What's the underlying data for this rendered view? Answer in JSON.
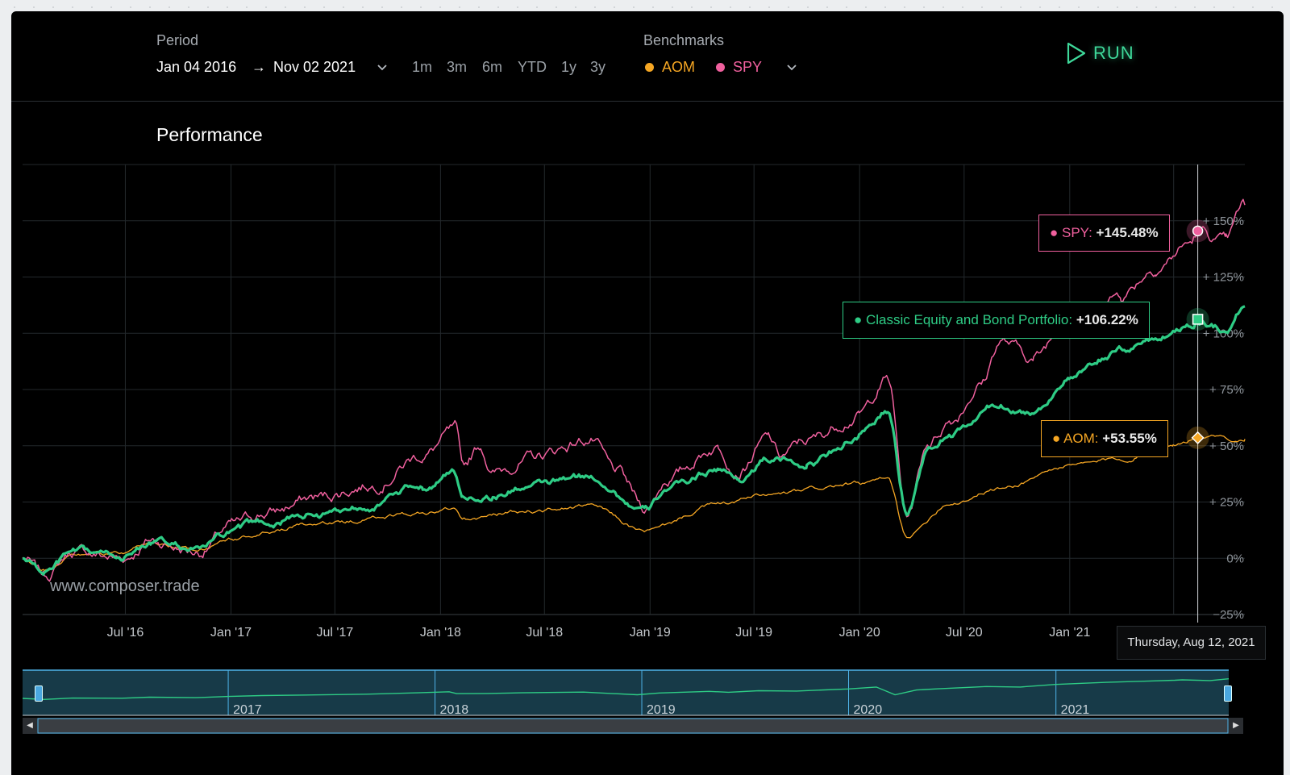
{
  "header": {
    "period_label": "Period",
    "start_date": "Jan 04 2016",
    "arrow": "→",
    "end_date": "Nov 02 2021",
    "quick_ranges": [
      "1m",
      "3m",
      "6m",
      "YTD",
      "1y",
      "3y"
    ],
    "benchmarks_label": "Benchmarks",
    "benchmarks": [
      {
        "name": "AOM",
        "color": "#f5a623"
      },
      {
        "name": "SPY",
        "color": "#f0609e"
      }
    ],
    "run_label": "RUN"
  },
  "chart_title": "Performance",
  "watermark": "www.composer.trade",
  "hover_date": "Thursday, Aug 12, 2021",
  "tooltips": [
    {
      "name": "SPY",
      "value": "+145.48%",
      "color": "#f0609e"
    },
    {
      "name": "Classic Equity and Bond Portfolio",
      "value": "+106.22%",
      "color": "#2ecc85"
    },
    {
      "name": "AOM",
      "value": "+53.55%",
      "color": "#f5a623"
    }
  ],
  "navigator_years": [
    "2017",
    "2018",
    "2019",
    "2020",
    "2021"
  ],
  "chart_data": {
    "type": "line",
    "x_tick_labels": [
      "Jul '16",
      "Jan '17",
      "Jul '17",
      "Jan '18",
      "Jul '18",
      "Jan '19",
      "Jul '19",
      "Jan '20",
      "Jul '20",
      "Jan '21"
    ],
    "y_tick_labels": [
      "+ 150%",
      "+ 125%",
      "+ 100%",
      "+ 75%",
      "+ 50%",
      "+ 25%",
      "0%",
      "−25%"
    ],
    "ylim": [
      -25,
      175
    ],
    "xlim": [
      "2016-01-04",
      "2021-11-02"
    ],
    "grid": true,
    "series": [
      {
        "name": "SPY",
        "color": "#f0609e",
        "x": [
          "2016-01-04",
          "2016-02-11",
          "2016-04-01",
          "2016-06-27",
          "2016-08-15",
          "2016-11-04",
          "2017-01-02",
          "2017-03-01",
          "2017-06-01",
          "2017-09-01",
          "2017-12-01",
          "2018-01-26",
          "2018-02-08",
          "2018-03-12",
          "2018-04-02",
          "2018-06-01",
          "2018-09-20",
          "2018-11-01",
          "2018-12-24",
          "2019-02-01",
          "2019-04-30",
          "2019-06-03",
          "2019-07-26",
          "2019-08-15",
          "2019-10-01",
          "2019-12-31",
          "2020-02-19",
          "2020-03-23",
          "2020-04-30",
          "2020-06-08",
          "2020-07-31",
          "2020-09-02",
          "2020-10-30",
          "2020-12-31",
          "2021-01-29",
          "2021-03-31",
          "2021-05-31",
          "2021-07-30",
          "2021-08-12",
          "2021-09-30",
          "2021-11-02"
        ],
        "values": [
          0,
          -8,
          3,
          0,
          8,
          3,
          14,
          20,
          27,
          33,
          46,
          56,
          40,
          50,
          38,
          44,
          53,
          38,
          22,
          36,
          50,
          40,
          53,
          45,
          52,
          64,
          80,
          19,
          52,
          62,
          78,
          97,
          89,
          108,
          108,
          118,
          130,
          140,
          145,
          140,
          157
        ]
      },
      {
        "name": "Classic Equity and Bond Portfolio",
        "color": "#2ecc85",
        "x": [
          "2016-01-04",
          "2016-02-11",
          "2016-04-01",
          "2016-06-27",
          "2016-08-15",
          "2016-11-04",
          "2017-01-02",
          "2017-03-01",
          "2017-06-01",
          "2017-09-01",
          "2017-12-01",
          "2018-01-26",
          "2018-02-08",
          "2018-04-02",
          "2018-06-01",
          "2018-09-20",
          "2018-12-24",
          "2019-02-01",
          "2019-04-30",
          "2019-06-03",
          "2019-07-26",
          "2019-10-01",
          "2019-12-31",
          "2020-02-19",
          "2020-03-23",
          "2020-04-30",
          "2020-06-08",
          "2020-08-31",
          "2020-10-30",
          "2020-12-31",
          "2021-03-31",
          "2021-05-31",
          "2021-07-30",
          "2021-08-12",
          "2021-09-30",
          "2021-11-02"
        ],
        "values": [
          0,
          -6,
          2,
          1,
          7,
          4,
          11,
          16,
          20,
          24,
          32,
          38,
          27,
          28,
          32,
          36,
          21,
          31,
          40,
          35,
          44,
          42,
          54,
          65,
          21,
          48,
          55,
          68,
          65,
          80,
          92,
          98,
          104,
          106,
          102,
          112
        ]
      },
      {
        "name": "AOM",
        "color": "#f5a623",
        "x": [
          "2016-01-04",
          "2016-02-11",
          "2016-04-01",
          "2016-06-27",
          "2016-08-15",
          "2016-11-04",
          "2017-01-02",
          "2017-06-01",
          "2017-12-01",
          "2018-01-26",
          "2018-02-08",
          "2018-06-01",
          "2018-09-20",
          "2018-12-24",
          "2019-04-30",
          "2019-07-26",
          "2019-12-31",
          "2020-02-19",
          "2020-03-23",
          "2020-06-08",
          "2020-08-31",
          "2020-12-31",
          "2021-03-31",
          "2021-06-30",
          "2021-08-12",
          "2021-11-02"
        ],
        "values": [
          0,
          -5,
          2,
          2,
          6,
          4,
          9,
          15,
          20,
          22,
          17,
          21,
          23,
          12,
          24,
          28,
          33,
          35,
          10,
          25,
          31,
          41,
          44,
          51,
          53.55,
          53
        ]
      }
    ]
  }
}
